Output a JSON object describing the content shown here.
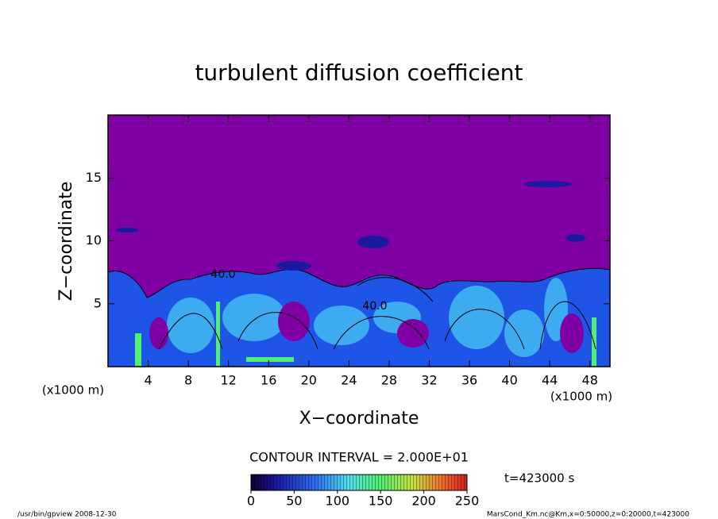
{
  "chart_data": {
    "type": "contour",
    "title": "turbulent diffusion coefficient",
    "x_label": "X−coordinate",
    "y_label": "Z−coordinate",
    "x_unit_label": "(x1000 m)",
    "y_unit_label": "(x1000 m)",
    "xlim": [
      0,
      50
    ],
    "xticks": [
      4,
      8,
      12,
      16,
      20,
      24,
      28,
      32,
      36,
      40,
      44,
      48
    ],
    "ylim": [
      0,
      20
    ],
    "yticks": [
      5,
      10,
      15
    ],
    "contour_labels": [
      "40.0",
      "40.0"
    ],
    "contour_interval_label": "CONTOUR INTERVAL = 2.000E+01",
    "time_label": "t=423000 s",
    "clim": [
      0,
      250
    ],
    "cticks": [
      0,
      50,
      100,
      150,
      200,
      250
    ],
    "footer_left": "/usr/bin/gpview   2008-12-30",
    "footer_right": "MarsCond_Km.nc@Km,x=0:50000,z=0:20000,t=423000"
  }
}
